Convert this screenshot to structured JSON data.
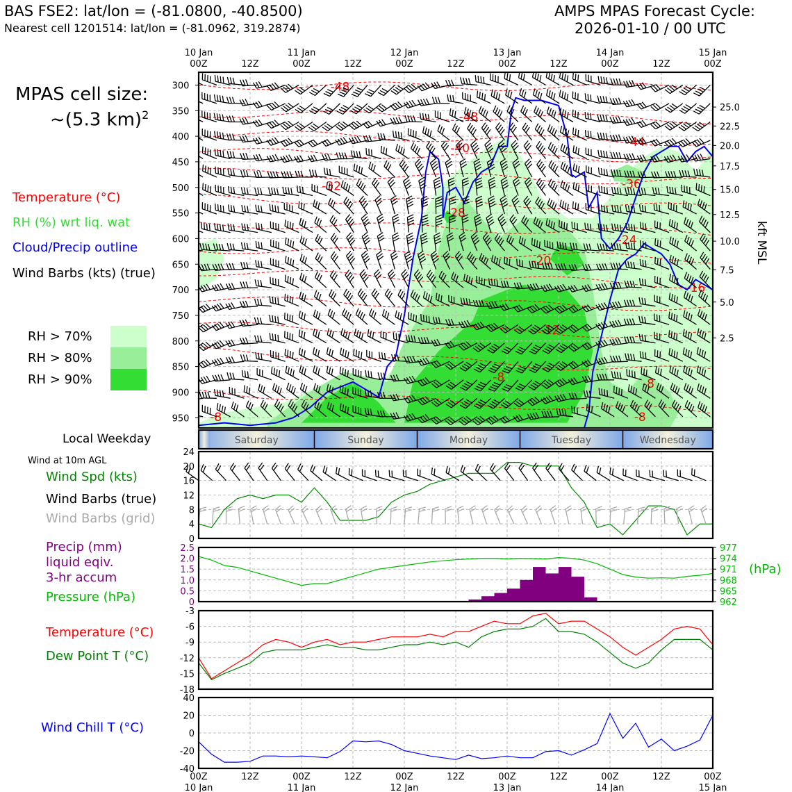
{
  "header": {
    "station": "BAS FSE2: lat/lon = (-81.0800, -40.8500)",
    "nearest_cell": "Nearest cell 1201514: lat/lon = (-81.0962, 319.2874)",
    "model_title": "AMPS MPAS Forecast Cycle:",
    "cycle": "2026-01-10 / 00 UTC"
  },
  "cell_size": {
    "title": "MPAS cell size:",
    "value": "~(5.3 km)",
    "exponent": "2"
  },
  "legend_upper": {
    "temperature": "Temperature (°C)",
    "rh": "RH (%) wrt liq. wat",
    "cloud": "Cloud/Precip outline",
    "wind": "Wind Barbs (kts) (true)",
    "rh70": "RH > 70%",
    "rh80": "RH > 80%",
    "rh90": "RH > 90%",
    "weekday_title": "Local Weekday",
    "wind10m": "Wind at 10m AGL"
  },
  "legend_wind": {
    "speed": "Wind Spd (kts)",
    "barbs_true": "Wind Barbs (true)",
    "barbs_grid": "Wind Barbs (grid)"
  },
  "legend_precip": {
    "line1": "Precip (mm)",
    "line2": "liquid eqiv.",
    "line3": "3-hr accum",
    "pressure": "Pressure (hPa)",
    "hpa_label": "(hPa)"
  },
  "legend_temp": {
    "temp": "Temperature (°C)",
    "dew": "Dew Point T (°C)"
  },
  "legend_chill": {
    "chill": "Wind Chill T (°C)"
  },
  "weekdays": [
    "Saturday",
    "Sunday",
    "Monday",
    "Tuesday",
    "Wednesday"
  ],
  "colors": {
    "temp": "#ff0000",
    "rh_legend": "#33dd33",
    "cloud": "#0000ee",
    "speed": "#008800",
    "grid_barb": "#aaaaaa",
    "precip": "#800080",
    "pressure": "#00bb00",
    "dew": "#008000",
    "chill": "#0000ff",
    "rh70": "#ccffcc",
    "rh80": "#99ee99",
    "rh90": "#33dd33",
    "weekday_blue": "#7fa8e8",
    "weekday_cream": "#f3f0dc"
  },
  "chart_data": [
    {
      "type": "heatmap",
      "name": "vertical-profile",
      "x_ticks": [
        {
          "hour": 0,
          "top": "10 Jan",
          "bottom": "00Z"
        },
        {
          "hour": 12,
          "top": "",
          "bottom": "12Z"
        },
        {
          "hour": 24,
          "top": "11 Jan",
          "bottom": "00Z"
        },
        {
          "hour": 36,
          "top": "",
          "bottom": "12Z"
        },
        {
          "hour": 48,
          "top": "12 Jan",
          "bottom": "00Z"
        },
        {
          "hour": 60,
          "top": "",
          "bottom": "12Z"
        },
        {
          "hour": 72,
          "top": "13 Jan",
          "bottom": "00Z"
        },
        {
          "hour": 84,
          "top": "",
          "bottom": "12Z"
        },
        {
          "hour": 96,
          "top": "14 Jan",
          "bottom": "00Z"
        },
        {
          "hour": 108,
          "top": "",
          "bottom": "12Z"
        },
        {
          "hour": 120,
          "top": "15 Jan",
          "bottom": "00Z"
        }
      ],
      "ylabel_right": "kft MSL",
      "pressure_ticks": [
        300,
        350,
        400,
        450,
        500,
        550,
        600,
        650,
        700,
        750,
        800,
        850,
        900,
        950
      ],
      "kft_ticks": [
        {
          "label": "25.0",
          "p": 343
        },
        {
          "label": "22.5",
          "p": 380
        },
        {
          "label": "20.0",
          "p": 418
        },
        {
          "label": "17.5",
          "p": 458
        },
        {
          "label": "15.0",
          "p": 504
        },
        {
          "label": "12.5",
          "p": 553
        },
        {
          "label": "10.0",
          "p": 605
        },
        {
          "label": "7.5",
          "p": 661
        },
        {
          "label": "5.0",
          "p": 724
        },
        {
          "label": "2.5",
          "p": 794
        }
      ],
      "temperature_contours": [
        {
          "level": "-48",
          "hour": 33,
          "p": 303
        },
        {
          "level": "-48",
          "hour": 63,
          "p": 362
        },
        {
          "level": "-44",
          "hour": 102,
          "p": 411
        },
        {
          "level": "-40",
          "hour": 61,
          "p": 423
        },
        {
          "level": "-36",
          "hour": 101,
          "p": 493
        },
        {
          "level": "-32",
          "hour": 31,
          "p": 497
        },
        {
          "level": "-28",
          "hour": 60,
          "p": 549
        },
        {
          "level": "-24",
          "hour": 100,
          "p": 602
        },
        {
          "level": "-20",
          "hour": 80,
          "p": 643
        },
        {
          "level": "-16",
          "hour": 116,
          "p": 696
        },
        {
          "level": "-12",
          "hour": 82,
          "p": 778
        },
        {
          "level": "-8",
          "hour": 105,
          "p": 883
        },
        {
          "level": "-8",
          "hour": 103,
          "p": 948
        },
        {
          "level": "-8",
          "hour": 4,
          "p": 948
        },
        {
          "level": "-8",
          "hour": 70,
          "p": 870
        }
      ]
    },
    {
      "type": "line",
      "name": "wind-speed",
      "xlabel": "",
      "ylabel": "Wind Spd (kts)",
      "ylim": [
        0,
        24
      ],
      "y_ticks": [
        0,
        4,
        8,
        12,
        16,
        20,
        24
      ],
      "x": [
        0,
        3,
        6,
        9,
        12,
        15,
        18,
        21,
        24,
        27,
        30,
        33,
        36,
        39,
        42,
        45,
        48,
        51,
        54,
        57,
        60,
        63,
        66,
        69,
        72,
        75,
        78,
        81,
        84,
        87,
        90,
        93,
        96,
        99,
        102,
        105,
        108,
        111,
        114,
        117,
        120
      ],
      "series": [
        {
          "name": "Wind Spd (kts)",
          "values": [
            4,
            3,
            8,
            11,
            12,
            11,
            12,
            12,
            10,
            14,
            10,
            5,
            5,
            5,
            6,
            10,
            12,
            13,
            15,
            16,
            17,
            18,
            18,
            18,
            21,
            21,
            20,
            20,
            20,
            14,
            10,
            3,
            4,
            1,
            5,
            9,
            9,
            8,
            1,
            4,
            4
          ]
        }
      ]
    },
    {
      "type": "bar",
      "name": "precip-pressure",
      "ylabel": "Precip (mm)",
      "ylim": [
        0,
        2.5
      ],
      "y_ticks": [
        0,
        0.5,
        1.0,
        1.5,
        2.0,
        2.5
      ],
      "precip_bars": [
        {
          "hour": 63,
          "value": 0.1
        },
        {
          "hour": 66,
          "value": 0.25
        },
        {
          "hour": 69,
          "value": 0.4
        },
        {
          "hour": 72,
          "value": 0.6
        },
        {
          "hour": 75,
          "value": 1.0
        },
        {
          "hour": 78,
          "value": 1.6
        },
        {
          "hour": 81,
          "value": 1.3
        },
        {
          "hour": 84,
          "value": 1.6
        },
        {
          "hour": 87,
          "value": 1.15
        },
        {
          "hour": 90,
          "value": 0.2
        }
      ],
      "pressure_ylim": [
        962,
        977
      ],
      "pressure_ticks": [
        962,
        965,
        968,
        971,
        974,
        977
      ],
      "pressure_x": [
        0,
        3,
        6,
        9,
        12,
        15,
        18,
        21,
        24,
        27,
        30,
        33,
        36,
        39,
        42,
        45,
        48,
        51,
        54,
        57,
        60,
        63,
        66,
        69,
        72,
        75,
        78,
        81,
        84,
        87,
        90,
        93,
        96,
        99,
        102,
        105,
        108,
        111,
        114,
        117,
        120
      ],
      "pressure": [
        974.5,
        973.5,
        972,
        971.5,
        970.5,
        969.5,
        968.5,
        967.5,
        966.5,
        967,
        967,
        968,
        969,
        970,
        971,
        971.5,
        972,
        972.5,
        973,
        973.3,
        973.6,
        973.8,
        974,
        974,
        973.8,
        974,
        973.9,
        973.8,
        974.2,
        974,
        973.5,
        972.5,
        971,
        969.5,
        968.8,
        968.5,
        968.6,
        968.5,
        969,
        969.3,
        969.8
      ]
    },
    {
      "type": "line",
      "name": "temperature-dewpoint",
      "ylim": [
        -18,
        -3
      ],
      "y_ticks": [
        -18,
        -15,
        -12,
        -9,
        -6,
        -3
      ],
      "x": [
        0,
        3,
        6,
        9,
        12,
        15,
        18,
        21,
        24,
        27,
        30,
        33,
        36,
        39,
        42,
        45,
        48,
        51,
        54,
        57,
        60,
        63,
        66,
        69,
        72,
        75,
        78,
        81,
        84,
        87,
        90,
        93,
        96,
        99,
        102,
        105,
        108,
        111,
        114,
        117,
        120
      ],
      "series": [
        {
          "name": "Temperature (°C)",
          "values": [
            -12,
            -16,
            -14.5,
            -13,
            -11.5,
            -9.5,
            -8.5,
            -9,
            -10,
            -9,
            -8.5,
            -9.5,
            -9,
            -9,
            -8.5,
            -8,
            -8,
            -8,
            -7.5,
            -8,
            -7,
            -7,
            -6,
            -5,
            -5.5,
            -5.5,
            -4,
            -3.5,
            -5.5,
            -5,
            -5,
            -6.5,
            -8,
            -10,
            -11.5,
            -10,
            -8.5,
            -6.5,
            -6,
            -6.5,
            -9.5
          ]
        },
        {
          "name": "Dew Point T (°C)",
          "values": [
            -13,
            -16.2,
            -15,
            -14,
            -13,
            -11,
            -10.5,
            -10.5,
            -10.5,
            -10,
            -9.5,
            -10,
            -10,
            -10.5,
            -10.5,
            -10,
            -9.5,
            -9.5,
            -9,
            -9.5,
            -9,
            -10,
            -8,
            -7,
            -6.5,
            -6.5,
            -6,
            -4.5,
            -7,
            -7,
            -7.5,
            -9,
            -11,
            -13,
            -14,
            -13,
            -10.5,
            -8.5,
            -8.5,
            -8.5,
            -10.5
          ]
        }
      ]
    },
    {
      "type": "line",
      "name": "wind-chill",
      "ylim": [
        -40,
        40
      ],
      "y_ticks": [
        -40,
        -20,
        0,
        20,
        40
      ],
      "x": [
        0,
        3,
        6,
        9,
        12,
        15,
        18,
        21,
        24,
        27,
        30,
        33,
        36,
        39,
        42,
        45,
        48,
        51,
        54,
        57,
        60,
        63,
        66,
        69,
        72,
        75,
        78,
        81,
        84,
        87,
        90,
        93,
        96,
        99,
        102,
        105,
        108,
        111,
        114,
        117,
        120
      ],
      "series": [
        {
          "name": "Wind Chill T (°C)",
          "values": [
            -10,
            -24,
            -33,
            -33,
            -32,
            -26,
            -26,
            -27,
            -26,
            -27,
            -28,
            -21,
            -9,
            -10,
            -9,
            -13,
            -20,
            -23,
            -26,
            -28,
            -30,
            -25,
            -29,
            -28,
            -26,
            -28,
            -28,
            -21,
            -20,
            -25,
            -19,
            -12,
            22,
            -6,
            11,
            -16,
            -7,
            -20,
            -15,
            -8,
            20
          ]
        }
      ]
    }
  ]
}
